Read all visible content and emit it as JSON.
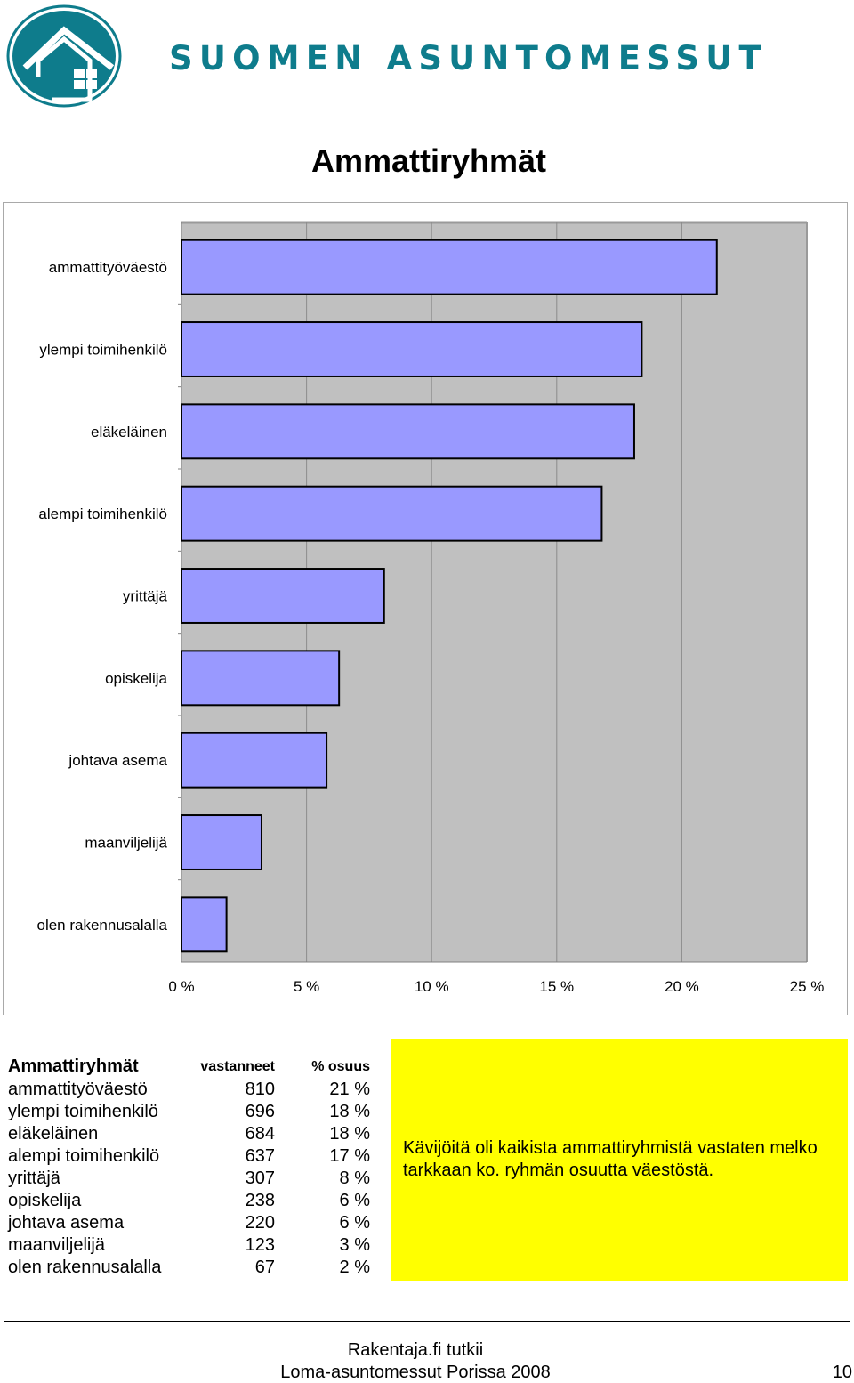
{
  "header": {
    "brand": "SUOMEN ASUNTOMESSUT",
    "colors": {
      "brand": "#0e7c8c",
      "logo_bg": "#0e7c8c"
    }
  },
  "title": "Ammattiryhmät",
  "chart_data": {
    "type": "bar",
    "orientation": "horizontal",
    "title": "Ammattiryhmät",
    "categories": [
      "ammattityöväestö",
      "ylempi toimihenkilö",
      "eläkeläinen",
      "alempi toimihenkilö",
      "yrittäjä",
      "opiskelija",
      "johtava asema",
      "maanviljelijä",
      "olen rakennusalalla"
    ],
    "values": [
      21.4,
      18.4,
      18.1,
      16.8,
      8.1,
      6.3,
      5.8,
      3.2,
      1.8
    ],
    "xlim": [
      0,
      25
    ],
    "xticks": [
      0,
      5,
      10,
      15,
      20,
      25
    ],
    "tick_labels": [
      "0 %",
      "5 %",
      "10 %",
      "15 %",
      "20 %",
      "25 %"
    ],
    "xlabel": "",
    "ylabel": "",
    "grid": true,
    "colors": {
      "bar": "#9999ff",
      "bar_border": "#000000",
      "plot_bg": "#c0c0c0",
      "grid": "#8c8c8c"
    }
  },
  "table": {
    "headers": [
      "Ammattiryhmät",
      "vastanneet",
      "% osuus"
    ],
    "rows": [
      [
        "ammattityöväestö",
        "810",
        "21 %"
      ],
      [
        "ylempi toimihenkilö",
        "696",
        "18 %"
      ],
      [
        "eläkeläinen",
        "684",
        "18 %"
      ],
      [
        "alempi toimihenkilö",
        "637",
        "17 %"
      ],
      [
        "yrittäjä",
        "307",
        "8 %"
      ],
      [
        "opiskelija",
        "238",
        "6 %"
      ],
      [
        "johtava asema",
        "220",
        "6 %"
      ],
      [
        "maanviljelijä",
        "123",
        "3 %"
      ],
      [
        "olen rakennusalalla",
        "67",
        "2 %"
      ]
    ]
  },
  "note": {
    "text": "Kävijöitä oli kaikista ammattiryhmistä vastaten melko tarkkaan ko. ryhmän osuutta väestöstä.",
    "color": "#ffff00"
  },
  "footer": {
    "line1": "Rakentaja.fi tutkii",
    "line2": "Loma-asuntomessut Porissa 2008",
    "page": "10"
  }
}
